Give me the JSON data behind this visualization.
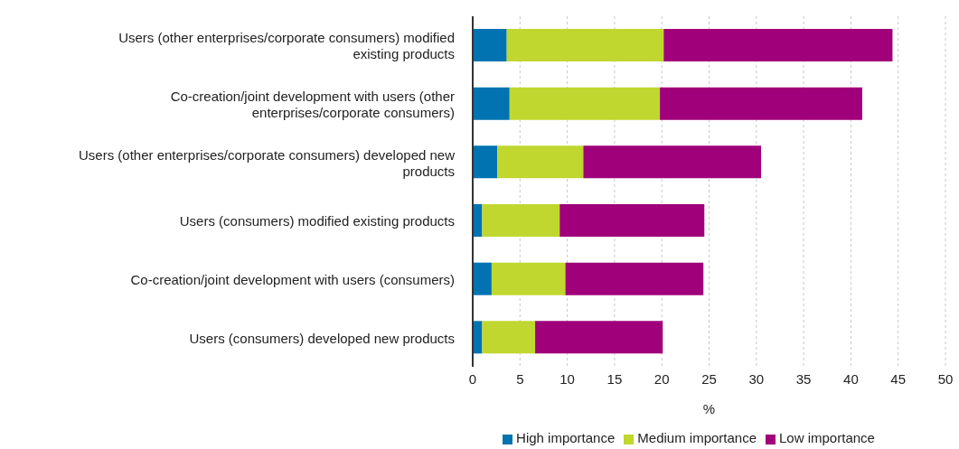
{
  "chart_data": {
    "type": "bar",
    "orientation": "horizontal",
    "stacked": true,
    "xlabel": "%",
    "categories": [
      "Users  (other enterprises/corporate consumers) modified existing products",
      "Co-creation/joint development with users (other enterprises/corporate consumers)",
      "Users  (other enterprises/corporate consumers) developed new products",
      "Users (consumers) modified existing products",
      "Co-creation/joint development with users (consumers)",
      "Users (consumers) developed new products"
    ],
    "series": [
      {
        "name": "High importance",
        "color": "#0073b0",
        "values": [
          3.6,
          3.9,
          2.6,
          1.0,
          2.0,
          1.0
        ]
      },
      {
        "name": "Medium importance",
        "color": "#c0d72f",
        "values": [
          16.6,
          15.9,
          9.1,
          8.2,
          7.8,
          5.6
        ]
      },
      {
        "name": "Low importance",
        "color": "#a0007a",
        "values": [
          24.2,
          21.4,
          18.8,
          15.3,
          14.6,
          13.5
        ]
      }
    ],
    "xlim": [
      0,
      50
    ],
    "xticks": [
      0,
      5,
      10,
      15,
      20,
      25,
      30,
      35,
      40,
      45,
      50
    ],
    "grid": "x",
    "legend": "bottom"
  }
}
